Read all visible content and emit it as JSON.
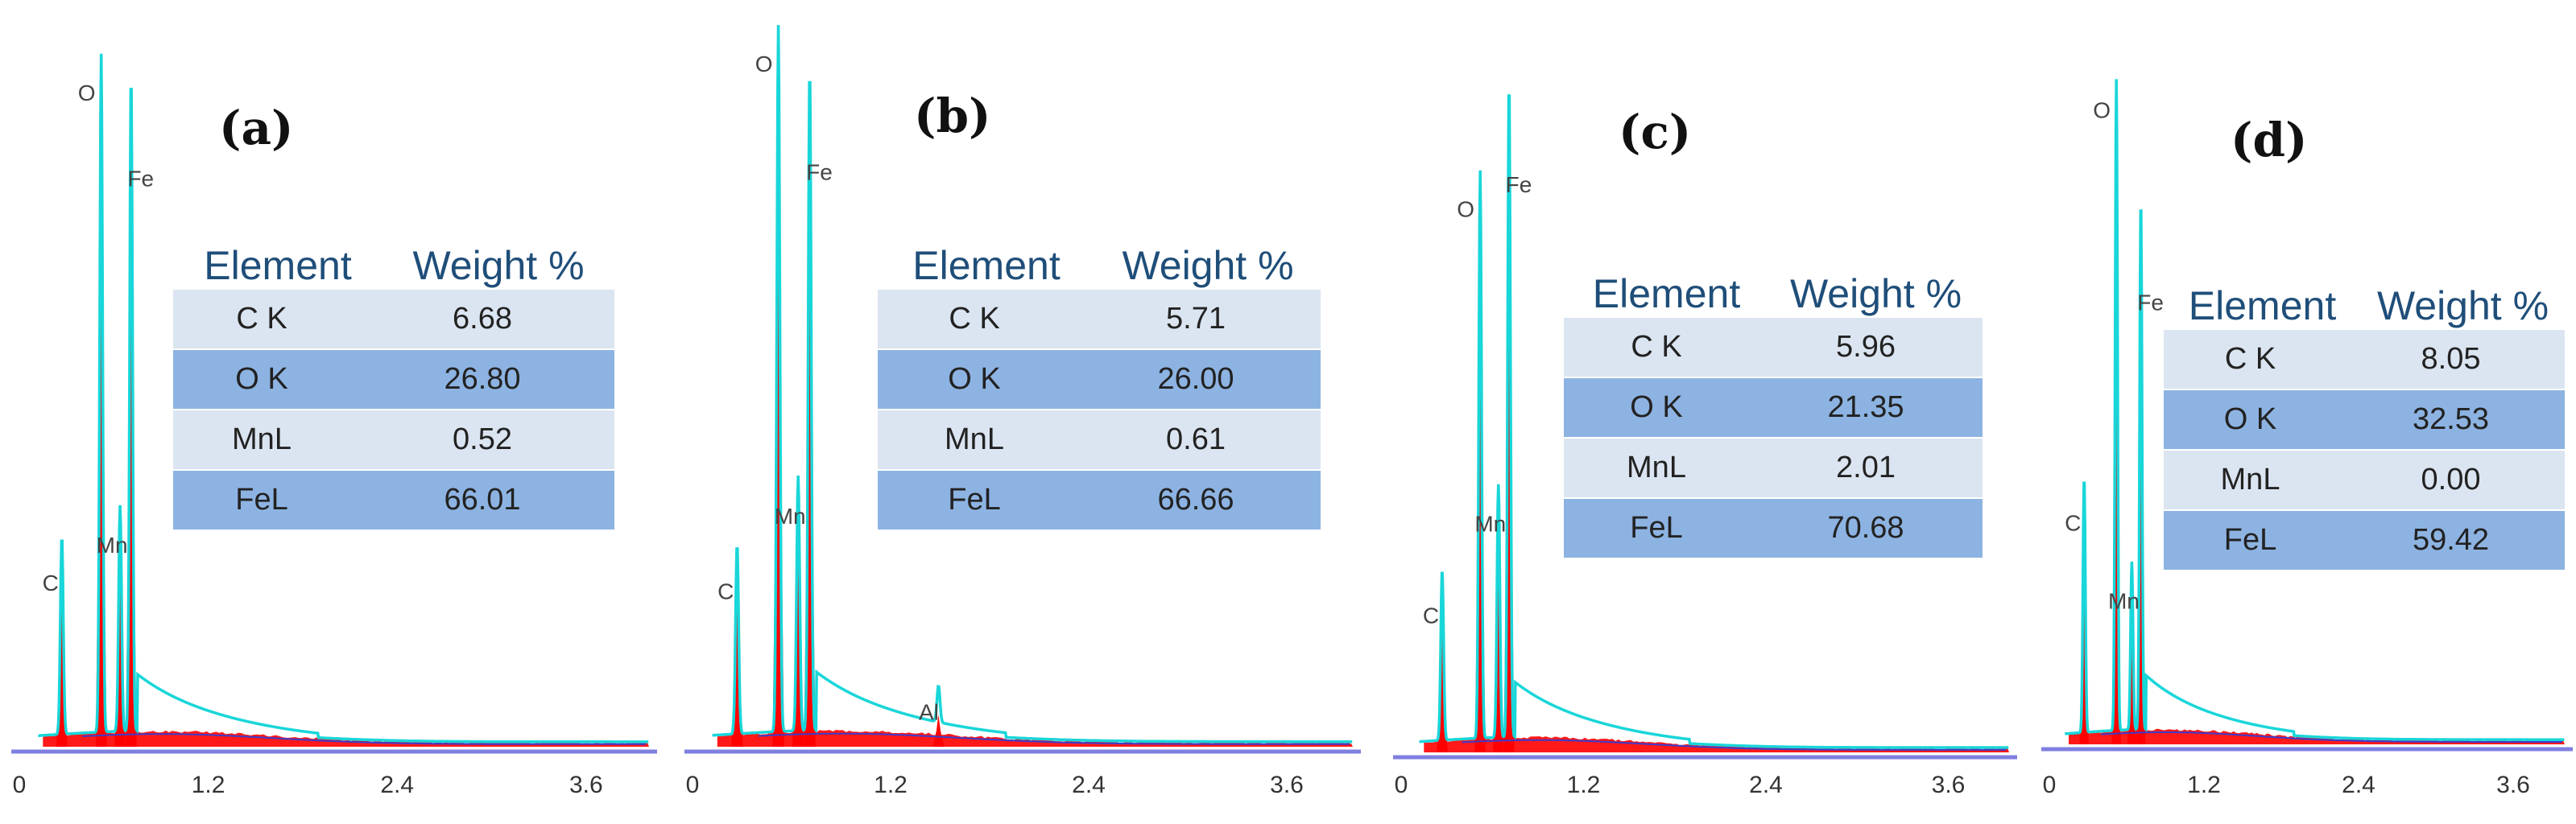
{
  "colors": {
    "spectrum": "#ff0000",
    "envelope": "#19d6d9",
    "background_line": "#3b3bcc",
    "axis": "#7f7fe0",
    "header_text": "#1f4e79",
    "row_light": "#dbe5f1",
    "row_dark": "#8db3e2"
  },
  "chart_data": [
    {
      "type": "area",
      "panel_label": "(a)",
      "x_ticks": [
        "0",
        "1.2",
        "2.4",
        "3.6"
      ],
      "xlim": [
        0,
        4.0
      ],
      "ylim": [
        0,
        100
      ],
      "peaks": [
        {
          "label": "C",
          "x": 0.27,
          "height": 28
        },
        {
          "label": "O",
          "x": 0.52,
          "height": 96
        },
        {
          "label": "Mn",
          "x": 0.64,
          "height": 32
        },
        {
          "label": "Fe",
          "x": 0.71,
          "height": 93
        }
      ],
      "table": {
        "headers": [
          "Element",
          "Weight %"
        ],
        "rows": [
          [
            "C K",
            "6.68"
          ],
          [
            "O K",
            "26.80"
          ],
          [
            "MnL",
            "0.52"
          ],
          [
            "FeL",
            "66.01"
          ]
        ]
      }
    },
    {
      "type": "area",
      "panel_label": "(b)",
      "x_ticks": [
        "0",
        "1.2",
        "2.4",
        "3.6"
      ],
      "xlim": [
        0,
        4.0
      ],
      "ylim": [
        0,
        100
      ],
      "peaks": [
        {
          "label": "C",
          "x": 0.27,
          "height": 26
        },
        {
          "label": "O",
          "x": 0.52,
          "height": 97
        },
        {
          "label": "Mn",
          "x": 0.64,
          "height": 35
        },
        {
          "label": "Fe",
          "x": 0.71,
          "height": 91
        },
        {
          "label": "Al",
          "x": 1.49,
          "height": 5
        }
      ],
      "table": {
        "headers": [
          "Element",
          "Weight %"
        ],
        "rows": [
          [
            "C K",
            "5.71"
          ],
          [
            "O K",
            "26.00"
          ],
          [
            "MnL",
            "0.61"
          ],
          [
            "FeL",
            "66.66"
          ]
        ]
      }
    },
    {
      "type": "area",
      "panel_label": "(c)",
      "x_ticks": [
        "0",
        "1.2",
        "2.4",
        "3.6"
      ],
      "xlim": [
        0,
        4.0
      ],
      "ylim": [
        0,
        100
      ],
      "peaks": [
        {
          "label": "C",
          "x": 0.27,
          "height": 25
        },
        {
          "label": "O",
          "x": 0.52,
          "height": 83
        },
        {
          "label": "Mn",
          "x": 0.64,
          "height": 37
        },
        {
          "label": "Fe",
          "x": 0.71,
          "height": 96
        }
      ],
      "table": {
        "headers": [
          "Element",
          "Weight %"
        ],
        "rows": [
          [
            "C K",
            "5.96"
          ],
          [
            "O K",
            "21.35"
          ],
          [
            "MnL",
            "2.01"
          ],
          [
            "FeL",
            "70.68"
          ]
        ]
      }
    },
    {
      "type": "area",
      "panel_label": "(d)",
      "x_ticks": [
        "0",
        "1.2",
        "2.4",
        "3.6"
      ],
      "xlim": [
        0,
        4.0
      ],
      "ylim": [
        0,
        100
      ],
      "peaks": [
        {
          "label": "C",
          "x": 0.27,
          "height": 38
        },
        {
          "label": "O",
          "x": 0.52,
          "height": 98
        },
        {
          "label": "Mn",
          "x": 0.64,
          "height": 25
        },
        {
          "label": "Fe",
          "x": 0.71,
          "height": 79
        }
      ],
      "table": {
        "headers": [
          "Element",
          "Weight %"
        ],
        "rows": [
          [
            "C K",
            "8.05"
          ],
          [
            "O K",
            "32.53"
          ],
          [
            "MnL",
            "0.00"
          ],
          [
            "FeL",
            "59.42"
          ]
        ]
      }
    }
  ]
}
